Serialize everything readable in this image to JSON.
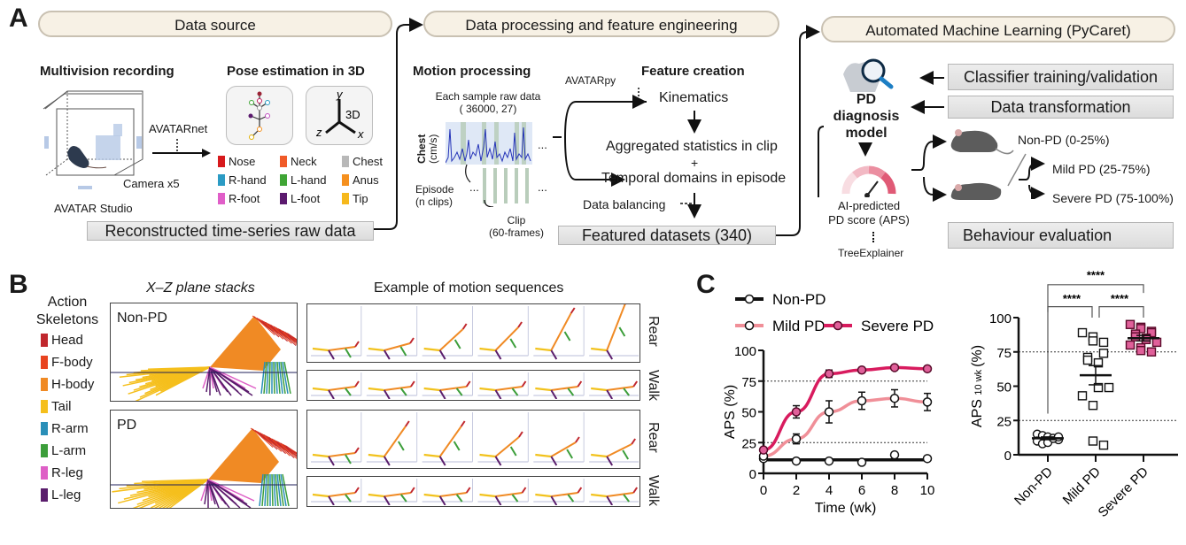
{
  "panelA": {
    "letter": "A",
    "sections": {
      "source": "Data source",
      "processing": "Data processing and feature engineering",
      "automl": "Automated Machine Learning (PyCaret)"
    },
    "source": {
      "multivision_title": "Multivision recording",
      "camera_label": "Camera x5",
      "studio_label": "AVATAR Studio",
      "avatarnet_label": "AVATARnet",
      "pose_title": "Pose estimation in 3D",
      "axes_3d": {
        "y": "y",
        "z": "z",
        "x": "x",
        "label": "3D"
      },
      "keypoints": [
        {
          "name": "Nose",
          "color": "#d7191c"
        },
        {
          "name": "Neck",
          "color": "#f05a28"
        },
        {
          "name": "Chest",
          "color": "#b8b8b8"
        },
        {
          "name": "R-hand",
          "color": "#2b9bc4"
        },
        {
          "name": "L-hand",
          "color": "#3fa535"
        },
        {
          "name": "Anus",
          "color": "#f5901e"
        },
        {
          "name": "R-foot",
          "color": "#e05ec8"
        },
        {
          "name": "L-foot",
          "color": "#5b1a6e"
        },
        {
          "name": "Tip",
          "color": "#f6b81c"
        }
      ],
      "output_box": "Reconstructed time-series raw data"
    },
    "processing": {
      "motion_title": "Motion processing",
      "raw_data_line1": "Each sample raw data",
      "raw_data_line2": "( 36000, 27)",
      "chest_axis_line1": "Chest",
      "chest_axis_line2": "(cm/s)",
      "episode_line1": "Episode",
      "episode_line2": "(n clips)",
      "clip_line1": "Clip",
      "clip_line2": "(60-frames)",
      "ellipsis": "...",
      "avatarpy_label": "AVATARpy",
      "feature_title": "Feature creation",
      "kinematics": "Kinematics",
      "aggregated": "Aggregated statistics in clip",
      "plus": "+",
      "temporal": "Temporal domains in episode",
      "balancing": "Data balancing",
      "output_box": "Featured datasets (340)"
    },
    "automl": {
      "classifier_box": "Classifier training/validation",
      "transform_box": "Data transformation",
      "model_line1": "PD diagnosis",
      "model_line2": "model",
      "aps_line1": "AI-predicted",
      "aps_line2": "PD score (APS)",
      "explainer": "TreeExplainer",
      "class_nonpd": "Non-PD (0-25%)",
      "class_mild": "Mild PD (25-75%)",
      "class_severe": "Severe PD (75-100%)",
      "behaviour_box": "Behaviour evaluation"
    }
  },
  "panelB": {
    "letter": "B",
    "legend_title_line1": "Action",
    "legend_title_line2": "Skeletons",
    "legend": [
      {
        "name": "Head",
        "color": "#c0272d"
      },
      {
        "name": "F-body",
        "color": "#e8431f"
      },
      {
        "name": "H-body",
        "color": "#f08a24"
      },
      {
        "name": "Tail",
        "color": "#f5bf1c"
      },
      {
        "name": "R-arm",
        "color": "#2a8fb8"
      },
      {
        "name": "L-arm",
        "color": "#3c9e3a"
      },
      {
        "name": "R-leg",
        "color": "#de5fc6"
      },
      {
        "name": "L-leg",
        "color": "#5a1d6c"
      }
    ],
    "xz_title": "X–Z plane stacks",
    "motion_title": "Example of motion sequences",
    "groups": [
      {
        "label": "Non-PD",
        "rows": [
          "Rear",
          "Walk"
        ]
      },
      {
        "label": "PD",
        "rows": [
          "Rear",
          "Walk"
        ]
      }
    ]
  },
  "panelC": {
    "letter": "C",
    "colors": {
      "nonpd": "#111111",
      "mild": "#f08f98",
      "severe": "#d81b5e",
      "severe_fill": "#e0609a"
    },
    "significance": {
      "top": "****",
      "left": "****",
      "right": "****"
    }
  },
  "chart_data": [
    {
      "type": "line",
      "title": "",
      "xlabel": "Time  (wk)",
      "ylabel": "APS (%)",
      "x": [
        0,
        2,
        4,
        6,
        8,
        10
      ],
      "xticks": [
        "0",
        "2",
        "4",
        "6",
        "8",
        "10"
      ],
      "yticks": [
        "0",
        "25",
        "50",
        "75",
        "100"
      ],
      "xlim": [
        0,
        10
      ],
      "ylim": [
        0,
        100
      ],
      "reference_lines": [
        25,
        75
      ],
      "legend": [
        "Non-PD",
        "Mild PD",
        "Severe PD"
      ],
      "legend_position": "top",
      "series": [
        {
          "name": "Non-PD",
          "values": [
            12,
            10,
            10,
            9,
            15,
            12
          ],
          "error": [
            0,
            0,
            0,
            0,
            0,
            0
          ]
        },
        {
          "name": "Mild PD",
          "values": [
            14,
            28,
            50,
            59,
            61,
            58
          ],
          "error": [
            2,
            4,
            9,
            7,
            7,
            7
          ]
        },
        {
          "name": "Severe PD",
          "values": [
            19,
            50,
            81,
            84,
            86,
            85
          ],
          "error": [
            2,
            5,
            3,
            2,
            1,
            1
          ]
        }
      ]
    },
    {
      "type": "scatter",
      "title": "",
      "xlabel": "",
      "ylabel": "APS 10 wk (%)",
      "ylabel_main": "APS",
      "ylabel_sub": "10 wk",
      "ylabel_unit": "(%)",
      "categories": [
        "Non-PD",
        "Mild PD",
        "Severe PD"
      ],
      "yticks": [
        "0",
        "25",
        "50",
        "75",
        "100"
      ],
      "ylim": [
        0,
        100
      ],
      "reference_lines": [
        25,
        75
      ],
      "series": [
        {
          "name": "Non-PD",
          "marker": "circle",
          "values": [
            15,
            14,
            13,
            12,
            11,
            10,
            8,
            9,
            12,
            13
          ],
          "mean": 12,
          "sem": 1
        },
        {
          "name": "Mild PD",
          "marker": "square",
          "values": [
            89,
            86,
            83,
            82,
            74,
            71,
            69,
            67,
            49,
            49,
            43,
            36,
            10,
            7
          ],
          "mean": 58,
          "sem": 7
        },
        {
          "name": "Severe PD",
          "marker": "square",
          "values": [
            95,
            93,
            92,
            90,
            89,
            88,
            86,
            85,
            84,
            82,
            80,
            78,
            76,
            75
          ],
          "mean": 85,
          "sem": 2
        }
      ]
    }
  ]
}
